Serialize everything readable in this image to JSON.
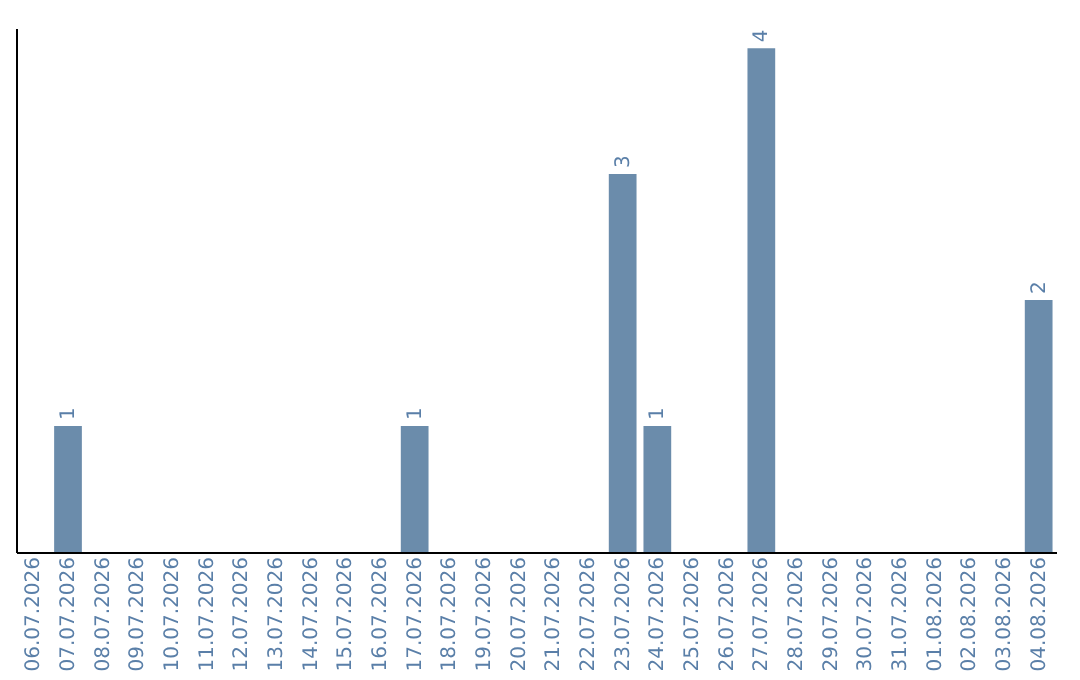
{
  "chart_data": {
    "type": "bar",
    "categories": [
      "06.07.2026",
      "07.07.2026",
      "08.07.2026",
      "09.07.2026",
      "10.07.2026",
      "11.07.2026",
      "12.07.2026",
      "13.07.2026",
      "14.07.2026",
      "15.07.2026",
      "16.07.2026",
      "17.07.2026",
      "18.07.2026",
      "19.07.2026",
      "20.07.2026",
      "21.07.2026",
      "22.07.2026",
      "23.07.2026",
      "24.07.2026",
      "25.07.2026",
      "26.07.2026",
      "27.07.2026",
      "28.07.2026",
      "29.07.2026",
      "30.07.2026",
      "31.07.2026",
      "01.08.2026",
      "02.08.2026",
      "03.08.2026",
      "04.08.2026"
    ],
    "values": [
      0,
      1,
      0,
      0,
      0,
      0,
      0,
      0,
      0,
      0,
      0,
      1,
      0,
      0,
      0,
      0,
      0,
      3,
      1,
      0,
      0,
      4,
      0,
      0,
      0,
      0,
      0,
      0,
      0,
      2
    ],
    "value_labels": [
      null,
      "1",
      null,
      null,
      null,
      null,
      null,
      null,
      null,
      null,
      null,
      "1",
      null,
      null,
      null,
      null,
      null,
      "3",
      "1",
      null,
      null,
      "4",
      null,
      null,
      null,
      null,
      null,
      null,
      null,
      "2"
    ],
    "color": "#6b8cab",
    "ylim": [
      0,
      4.16
    ],
    "tick_labels": "x",
    "grid": false
  }
}
